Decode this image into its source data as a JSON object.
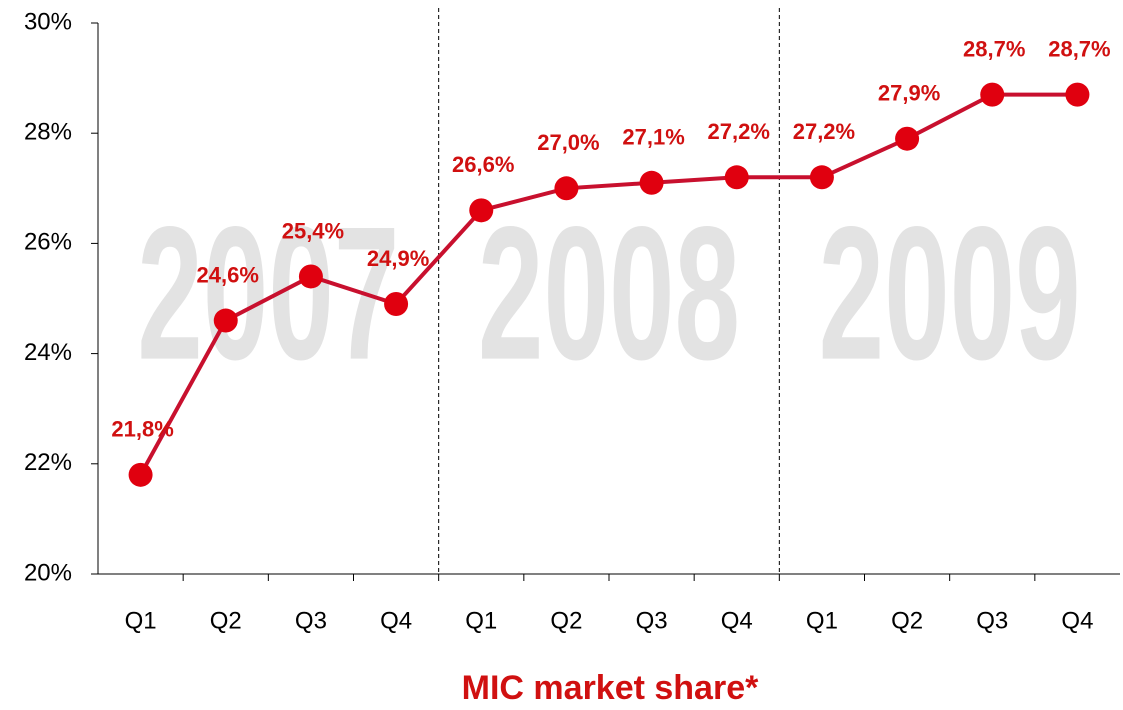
{
  "chart_data": {
    "type": "line",
    "title": "MIC market share*",
    "annotations": [
      "2007",
      "2008",
      "2009"
    ],
    "categories": [
      "Q1",
      "Q2",
      "Q3",
      "Q4",
      "Q1",
      "Q2",
      "Q3",
      "Q4",
      "Q1",
      "Q2",
      "Q3",
      "Q4"
    ],
    "series": [
      {
        "name": "MIC market share",
        "color": "#c8102e",
        "values": [
          21.8,
          24.6,
          25.4,
          24.9,
          26.6,
          27.0,
          27.1,
          27.2,
          27.2,
          27.9,
          28.7,
          28.7
        ],
        "value_labels": [
          "21,8%",
          "24,6%",
          "25,4%",
          "24,9%",
          "26,6%",
          "27,0%",
          "27,1%",
          "27,2%",
          "27,2%",
          "27,9%",
          "28,7%",
          "28,7%"
        ]
      }
    ],
    "ylim": [
      20,
      30
    ],
    "yticks": [
      {
        "value": 20,
        "label": "20%"
      },
      {
        "value": 22,
        "label": "22%"
      },
      {
        "value": 24,
        "label": "24%"
      },
      {
        "value": 26,
        "label": "26%"
      },
      {
        "value": 28,
        "label": "28%"
      },
      {
        "value": 30,
        "label": "30%"
      }
    ],
    "grid": false
  }
}
